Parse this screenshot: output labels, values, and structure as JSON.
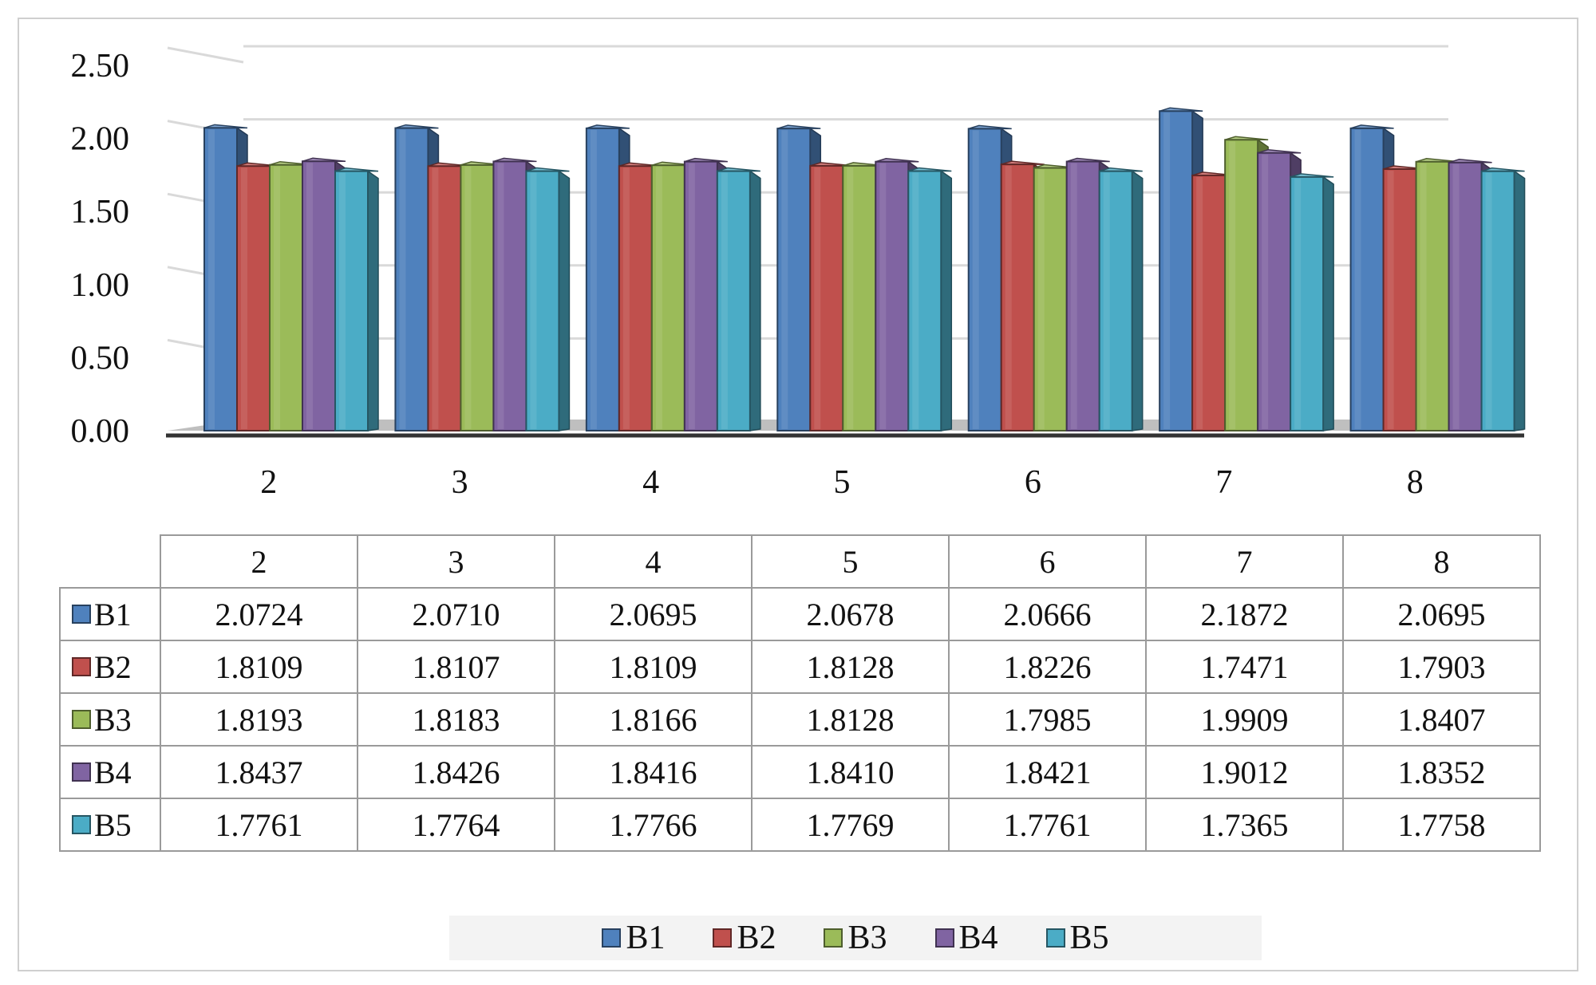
{
  "chart_data": {
    "type": "bar",
    "categories": [
      "2",
      "3",
      "4",
      "5",
      "6",
      "7",
      "8"
    ],
    "series": [
      {
        "name": "B1",
        "color": "#4f81bd",
        "values": [
          2.0724,
          2.071,
          2.0695,
          2.0678,
          2.0666,
          2.1872,
          2.0695
        ]
      },
      {
        "name": "B2",
        "color": "#c0504d",
        "values": [
          1.8109,
          1.8107,
          1.8109,
          1.8128,
          1.8226,
          1.7471,
          1.7903
        ]
      },
      {
        "name": "B3",
        "color": "#9bbb59",
        "values": [
          1.8193,
          1.8183,
          1.8166,
          1.8128,
          1.7985,
          1.9909,
          1.8407
        ]
      },
      {
        "name": "B4",
        "color": "#8064a2",
        "values": [
          1.8437,
          1.8426,
          1.8416,
          1.841,
          1.8421,
          1.9012,
          1.8352
        ]
      },
      {
        "name": "B5",
        "color": "#4bacc6",
        "values": [
          1.7761,
          1.7764,
          1.7766,
          1.7769,
          1.7761,
          1.7365,
          1.7758
        ]
      }
    ],
    "ylim": [
      0,
      2.5
    ],
    "yticks": [
      "0.00",
      "0.50",
      "1.00",
      "1.50",
      "2.00",
      "2.50"
    ],
    "grid": true,
    "legend_position": "bottom",
    "data_table": {
      "columns": [
        "2",
        "3",
        "4",
        "5",
        "6",
        "7",
        "8"
      ],
      "rows": [
        {
          "label": "B1",
          "cells": [
            "2.0724",
            "2.0710",
            "2.0695",
            "2.0678",
            "2.0666",
            "2.1872",
            "2.0695"
          ]
        },
        {
          "label": "B2",
          "cells": [
            "1.8109",
            "1.8107",
            "1.8109",
            "1.8128",
            "1.8226",
            "1.7471",
            "1.7903"
          ]
        },
        {
          "label": "B3",
          "cells": [
            "1.8193",
            "1.8183",
            "1.8166",
            "1.8128",
            "1.7985",
            "1.9909",
            "1.8407"
          ]
        },
        {
          "label": "B4",
          "cells": [
            "1.8437",
            "1.8426",
            "1.8416",
            "1.8410",
            "1.8421",
            "1.9012",
            "1.8352"
          ]
        },
        {
          "label": "B5",
          "cells": [
            "1.7761",
            "1.7764",
            "1.7766",
            "1.7769",
            "1.7761",
            "1.7365",
            "1.7758"
          ]
        }
      ]
    }
  }
}
